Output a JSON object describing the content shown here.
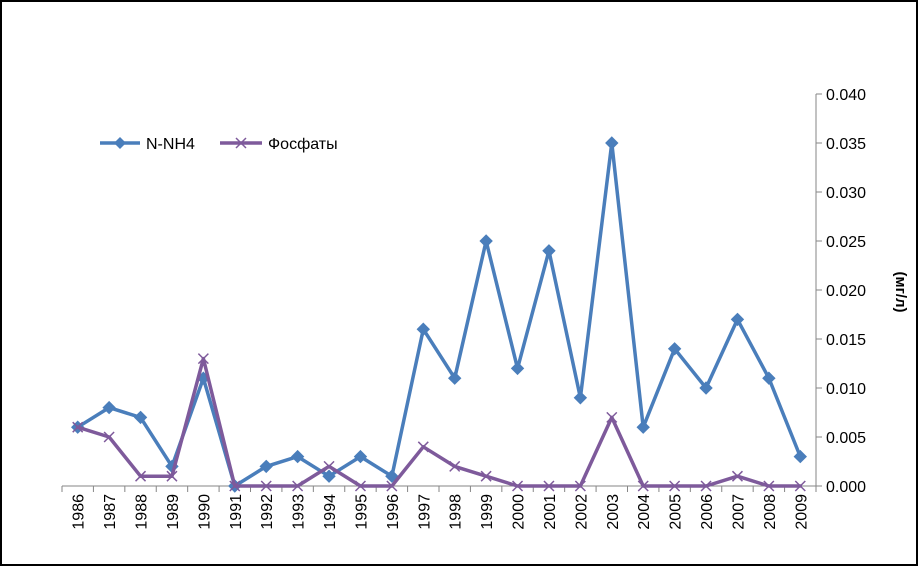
{
  "chart_data": {
    "type": "line",
    "title": "",
    "xlabel": "",
    "ylabel": "(мг/л)",
    "ylim": [
      0,
      0.04
    ],
    "y_ticks": [
      "0.000",
      "0.005",
      "0.010",
      "0.015",
      "0.020",
      "0.025",
      "0.030",
      "0.035",
      "0.040"
    ],
    "y_axis_side": "right",
    "grid": false,
    "legend_position": "top-left",
    "categories": [
      "1986",
      "1987",
      "1988",
      "1989",
      "1990",
      "1991",
      "1992",
      "1993",
      "1994",
      "1995",
      "1996",
      "1997",
      "1998",
      "1999",
      "2000",
      "2001",
      "2002",
      "2003",
      "2004",
      "2005",
      "2006",
      "2007",
      "2008",
      "2009"
    ],
    "series": [
      {
        "name": "N-NH4",
        "color": "#4a7ebb",
        "marker": "diamond",
        "values": [
          0.006,
          0.008,
          0.007,
          0.002,
          0.011,
          0.0,
          0.002,
          0.003,
          0.001,
          0.003,
          0.001,
          0.016,
          0.011,
          0.025,
          0.012,
          0.024,
          0.009,
          0.035,
          0.006,
          0.014,
          0.01,
          0.017,
          0.011,
          0.003
        ]
      },
      {
        "name": "Фосфаты",
        "color": "#7e5a9b",
        "marker": "x",
        "values": [
          0.006,
          0.005,
          0.001,
          0.001,
          0.013,
          0.0,
          0.0,
          0.0,
          0.002,
          0.0,
          0.0,
          0.004,
          0.002,
          0.001,
          0.0,
          0.0,
          0.0,
          0.007,
          0.0,
          0.0,
          0.0,
          0.001,
          0.0,
          0.0
        ]
      }
    ]
  }
}
